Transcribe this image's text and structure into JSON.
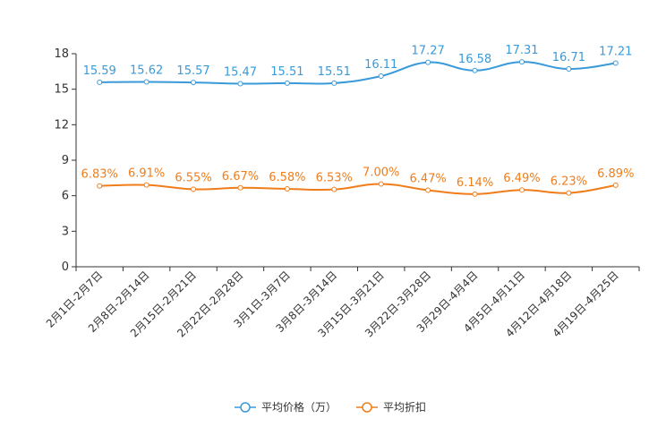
{
  "chart_data": {
    "type": "line",
    "categories": [
      "2月1日-2月7日",
      "2月8日-2月14日",
      "2月15日-2月21日",
      "2月22日-2月28日",
      "3月1日-3月7日",
      "3月8日-3月14日",
      "3月15日-3月21日",
      "3月22日-3月28日",
      "3月29日-4月4日",
      "4月5日-4月11日",
      "4月12日-4月18日",
      "4月19日-4月25日"
    ],
    "yticks": [
      "0",
      "3",
      "6",
      "9",
      "12",
      "15",
      "18"
    ],
    "ylim": [
      0,
      18
    ],
    "series": [
      {
        "name": "平均价格（万）",
        "color": "#3a9ad9",
        "values": [
          15.59,
          15.62,
          15.57,
          15.47,
          15.51,
          15.51,
          16.11,
          17.27,
          16.58,
          17.31,
          16.71,
          17.21
        ],
        "labels": [
          "15.59",
          "15.62",
          "15.57",
          "15.47",
          "15.51",
          "15.51",
          "16.11",
          "17.27",
          "16.58",
          "17.31",
          "16.71",
          "17.21"
        ]
      },
      {
        "name": "平均折扣",
        "color": "#f07d1a",
        "values": [
          6.83,
          6.91,
          6.55,
          6.67,
          6.58,
          6.53,
          7.0,
          6.47,
          6.14,
          6.49,
          6.23,
          6.89
        ],
        "labels": [
          "6.83%",
          "6.91%",
          "6.55%",
          "6.67%",
          "6.58%",
          "6.53%",
          "7.00%",
          "6.47%",
          "6.14%",
          "6.49%",
          "6.23%",
          "6.89%"
        ]
      }
    ],
    "legend_position": "bottom-center"
  }
}
